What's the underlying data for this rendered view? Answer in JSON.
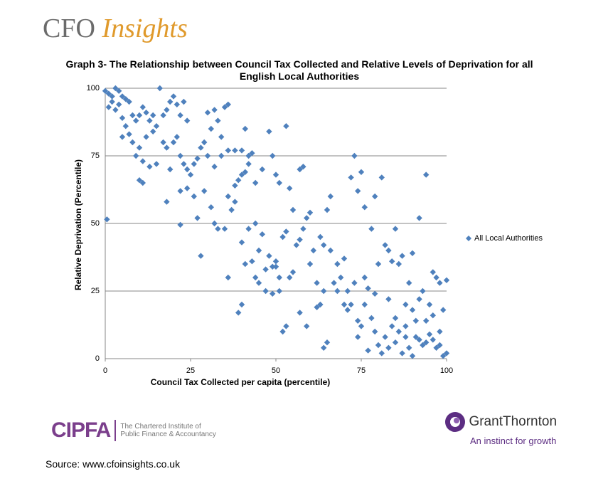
{
  "branding": {
    "cfo": "CFO",
    "insights": "Insights",
    "cipfa": "CIPFA",
    "cipfa_sub": [
      "The Chartered Institute of",
      "Public Finance & Accountancy"
    ],
    "gt_name": "GrantThornton",
    "gt_tagline": "An instinct for growth",
    "source": "Source: www.cfoinsights.co.uk"
  },
  "chart_data": {
    "type": "scatter",
    "title": "Graph 3- The Relationship between Council Tax Collected and Relative Levels of Deprivation for all English Local Authorities",
    "x_label": "Council Tax Collected per capita (percentile)",
    "y_label": "Relative Deprivation (Percentile)",
    "xlim": [
      0,
      100
    ],
    "ylim": [
      0,
      100
    ],
    "xticks": [
      0,
      25,
      50,
      75,
      100
    ],
    "yticks": [
      0,
      25,
      50,
      75,
      100
    ],
    "grid": true,
    "legend": "right",
    "series": [
      {
        "name": "All Local Authorities",
        "color": "#4f81bd",
        "x": [
          0,
          1,
          2,
          3,
          4,
          5,
          2,
          1,
          4,
          6,
          7,
          3,
          5,
          8,
          6,
          9,
          10,
          7,
          5,
          11,
          12,
          13,
          14,
          15,
          16,
          17,
          18,
          19,
          20,
          21,
          22,
          23,
          24,
          8,
          10,
          12,
          14,
          9,
          11,
          13,
          15,
          17,
          18,
          20,
          21,
          19,
          22,
          23,
          24,
          25,
          26,
          27,
          28,
          29,
          30,
          31,
          32,
          33,
          34,
          35,
          36,
          30,
          32,
          34,
          36,
          38,
          40,
          41,
          42,
          10,
          11,
          0.5,
          18,
          22,
          22,
          24,
          26,
          27,
          28,
          29,
          31,
          32,
          33,
          35,
          36,
          37,
          38,
          39,
          40,
          41,
          42,
          43,
          44,
          46,
          48,
          49,
          50,
          51,
          53,
          54,
          55,
          57,
          58,
          60,
          36,
          38,
          40,
          40,
          39,
          41,
          42,
          44,
          45,
          46,
          47,
          48,
          49,
          50,
          51,
          52,
          53,
          54,
          55,
          56,
          57,
          58,
          59,
          60,
          61,
          62,
          63,
          64,
          65,
          63,
          64,
          65,
          66,
          67,
          68,
          69,
          70,
          71,
          72,
          73,
          74,
          75,
          76,
          72,
          73,
          74,
          75,
          76,
          77,
          78,
          79,
          80,
          81,
          82,
          83,
          84,
          85,
          86,
          87,
          88,
          89,
          90,
          91,
          92,
          93,
          94,
          95,
          96,
          97,
          98,
          99,
          100,
          78,
          79,
          80,
          81,
          82,
          83,
          84,
          85,
          86,
          87,
          88,
          89,
          90,
          91,
          92,
          93,
          94,
          95,
          96,
          97,
          98,
          99,
          100,
          47,
          49,
          50,
          51,
          52,
          53,
          57,
          59,
          62,
          64,
          66,
          68,
          70,
          71,
          74,
          76,
          77,
          79,
          83,
          85,
          88,
          90,
          92,
          94,
          96,
          98,
          45,
          43,
          44
        ],
        "values": [
          99,
          98,
          97,
          100,
          99,
          97,
          95,
          93,
          94,
          96,
          95,
          92,
          89,
          90,
          86,
          88,
          90,
          83,
          82,
          93,
          91,
          88,
          90,
          86,
          100,
          90,
          92,
          95,
          97,
          94,
          90,
          95,
          88,
          80,
          78,
          82,
          84,
          75,
          73,
          71,
          72,
          80,
          78,
          80,
          82,
          70,
          75,
          72,
          70,
          68,
          72,
          74,
          78,
          80,
          91,
          85,
          92,
          88,
          82,
          93,
          94,
          75,
          71,
          75,
          77,
          77,
          77,
          85,
          75,
          66,
          65,
          51.5,
          58,
          49.5,
          62,
          63,
          60,
          52,
          38,
          62,
          56,
          50,
          48,
          48,
          60,
          55,
          64,
          66,
          68,
          69,
          72,
          76,
          65,
          70,
          84,
          75,
          68,
          65,
          86,
          63,
          55,
          70,
          71,
          54,
          30,
          58,
          43,
          20,
          17,
          35,
          48,
          50,
          40,
          46,
          33,
          38,
          34,
          36,
          25,
          10,
          12,
          30,
          32,
          42,
          44,
          48,
          52,
          35,
          40,
          19,
          20,
          4,
          6,
          45,
          42,
          55,
          60,
          28,
          25,
          30,
          37,
          25,
          67,
          75,
          62,
          69,
          56,
          20,
          28,
          14,
          12,
          30,
          26,
          48,
          60,
          35,
          67,
          42,
          40,
          36,
          48,
          35,
          38,
          20,
          28,
          39,
          14,
          52,
          25,
          68,
          20,
          32,
          30,
          28,
          18,
          29,
          15,
          10,
          5,
          2,
          8,
          4,
          12,
          6,
          10,
          2,
          8,
          4,
          1,
          8,
          7,
          5,
          6,
          9,
          7,
          4,
          10,
          1,
          2,
          25,
          24,
          34,
          30,
          45,
          47,
          17,
          12,
          28,
          25,
          40,
          35,
          20,
          18,
          8,
          20,
          3,
          24,
          22,
          15,
          12,
          18,
          22,
          14,
          16,
          5,
          28,
          36,
          30
        ]
      }
    ]
  }
}
